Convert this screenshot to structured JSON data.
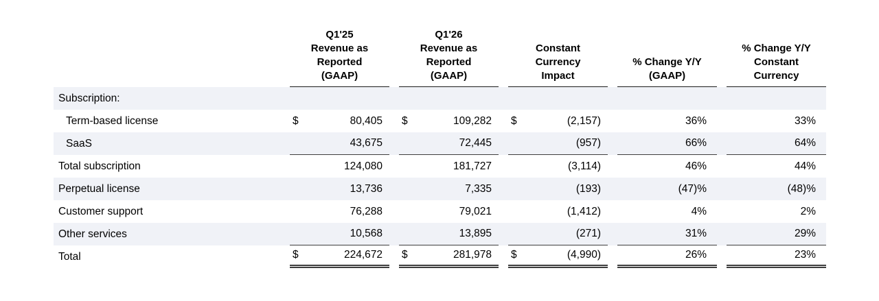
{
  "table": {
    "currency_symbol": "$",
    "columns": [
      "Q1'25\nRevenue as\nReported\n(GAAP)",
      "Q1'26\nRevenue as\nReported\n(GAAP)",
      "Constant\nCurrency\nImpact",
      "% Change Y/Y\n(GAAP)",
      "% Change Y/Y\nConstant\nCurrency"
    ],
    "rows": [
      {
        "label": "Subscription:"
      },
      {
        "label": "Term-based license",
        "dollar": "$",
        "values": [
          "80,405",
          "109,282",
          "(2,157)",
          "36%",
          "33%"
        ]
      },
      {
        "label": "SaaS",
        "values": [
          "43,675",
          "72,445",
          "(957)",
          "66%",
          "64%"
        ]
      },
      {
        "label": "Total subscription",
        "values": [
          "124,080",
          "181,727",
          "(3,114)",
          "46%",
          "44%"
        ]
      },
      {
        "label": "Perpetual license",
        "values": [
          "13,736",
          "7,335",
          "(193)",
          "(47)%",
          "(48)%"
        ]
      },
      {
        "label": "Customer support",
        "values": [
          "76,288",
          "79,021",
          "(1,412)",
          "4%",
          "2%"
        ]
      },
      {
        "label": "Other services",
        "values": [
          "10,568",
          "13,895",
          "(271)",
          "31%",
          "29%"
        ]
      },
      {
        "label": "Total",
        "dollar": "$",
        "values": [
          "224,672",
          "281,978",
          "(4,990)",
          "26%",
          "23%"
        ]
      }
    ]
  }
}
